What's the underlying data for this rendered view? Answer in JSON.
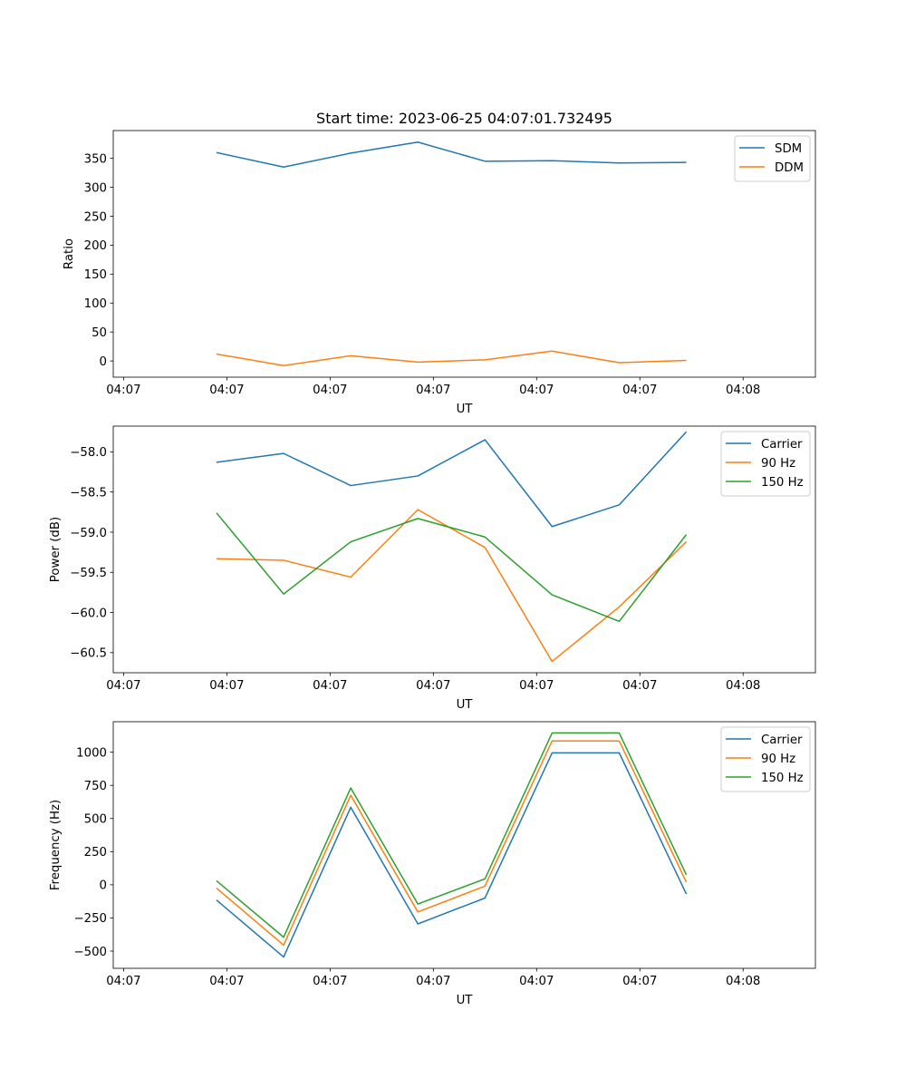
{
  "figure": {
    "title": "Start time: 2023-06-25 04:07:01.732495"
  },
  "colors": {
    "blue": "#1f77b4",
    "orange": "#ff7f0e",
    "green": "#2ca02c"
  },
  "chart_data": [
    {
      "type": "line",
      "title": "Start time: 2023-06-25 04:07:01.732495",
      "xlabel": "UT",
      "ylabel": "Ratio",
      "x": [
        1.0,
        1.65,
        2.3,
        2.95,
        3.6,
        4.25,
        4.9,
        5.55
      ],
      "xlim": [
        0.0,
        6.8
      ],
      "xticks": [
        0.1,
        1.1,
        2.1,
        3.1,
        4.1,
        5.1,
        6.1
      ],
      "xtick_labels": [
        "04:07",
        "04:07",
        "04:07",
        "04:07",
        "04:07",
        "04:07",
        "04:08"
      ],
      "ylim": [
        -28,
        398
      ],
      "yticks": [
        0,
        50,
        100,
        150,
        200,
        250,
        300,
        350
      ],
      "ytick_labels": [
        "0",
        "50",
        "100",
        "150",
        "200",
        "250",
        "300",
        "350"
      ],
      "grid": false,
      "legend": "top-right",
      "series": [
        {
          "name": "SDM",
          "color": "#1f77b4",
          "values": [
            360,
            335,
            359,
            378,
            345,
            346,
            342,
            343
          ]
        },
        {
          "name": "DDM",
          "color": "#ff7f0e",
          "values": [
            12,
            -8,
            9,
            -2,
            2,
            17,
            -3,
            1
          ]
        }
      ]
    },
    {
      "type": "line",
      "xlabel": "UT",
      "ylabel": "Power (dB)",
      "x": [
        1.0,
        1.65,
        2.3,
        2.95,
        3.6,
        4.25,
        4.9,
        5.55
      ],
      "xlim": [
        0.0,
        6.8
      ],
      "xticks": [
        0.1,
        1.1,
        2.1,
        3.1,
        4.1,
        5.1,
        6.1
      ],
      "xtick_labels": [
        "04:07",
        "04:07",
        "04:07",
        "04:07",
        "04:07",
        "04:07",
        "04:08"
      ],
      "ylim": [
        -60.75,
        -57.68
      ],
      "yticks": [
        -60.5,
        -60.0,
        -59.5,
        -59.0,
        -58.5,
        -58.0
      ],
      "ytick_labels": [
        "−60.5",
        "−60.0",
        "−59.5",
        "−59.0",
        "−58.5",
        "−58.0"
      ],
      "grid": false,
      "legend": "top-right",
      "series": [
        {
          "name": "Carrier",
          "color": "#1f77b4",
          "values": [
            -58.13,
            -58.02,
            -58.42,
            -58.3,
            -57.85,
            -58.93,
            -58.66,
            -57.75
          ]
        },
        {
          "name": "90 Hz",
          "color": "#ff7f0e",
          "values": [
            -59.33,
            -59.35,
            -59.56,
            -58.72,
            -59.19,
            -60.61,
            -59.93,
            -59.12
          ]
        },
        {
          "name": "150 Hz",
          "color": "#2ca02c",
          "values": [
            -58.76,
            -59.77,
            -59.12,
            -58.83,
            -59.06,
            -59.78,
            -60.11,
            -59.03
          ]
        }
      ]
    },
    {
      "type": "line",
      "xlabel": "UT",
      "ylabel": "Frequency (Hz)",
      "x": [
        1.0,
        1.65,
        2.3,
        2.95,
        3.6,
        4.25,
        4.9,
        5.55
      ],
      "xlim": [
        0.0,
        6.8
      ],
      "xticks": [
        0.1,
        1.1,
        2.1,
        3.1,
        4.1,
        5.1,
        6.1
      ],
      "xtick_labels": [
        "04:07",
        "04:07",
        "04:07",
        "04:07",
        "04:07",
        "04:07",
        "04:08"
      ],
      "ylim": [
        -630,
        1230
      ],
      "yticks": [
        -500,
        -250,
        0,
        250,
        500,
        750,
        1000
      ],
      "ytick_labels": [
        "−500",
        "−250",
        "0",
        "250",
        "500",
        "750",
        "1000"
      ],
      "grid": false,
      "legend": "top-right",
      "series": [
        {
          "name": "Carrier",
          "color": "#1f77b4",
          "values": [
            -115,
            -545,
            585,
            -295,
            -100,
            995,
            995,
            -70
          ]
        },
        {
          "name": "90 Hz",
          "color": "#ff7f0e",
          "values": [
            -25,
            -455,
            675,
            -205,
            -10,
            1085,
            1085,
            20
          ]
        },
        {
          "name": "150 Hz",
          "color": "#2ca02c",
          "values": [
            30,
            -395,
            730,
            -145,
            45,
            1145,
            1145,
            75
          ]
        }
      ]
    }
  ]
}
